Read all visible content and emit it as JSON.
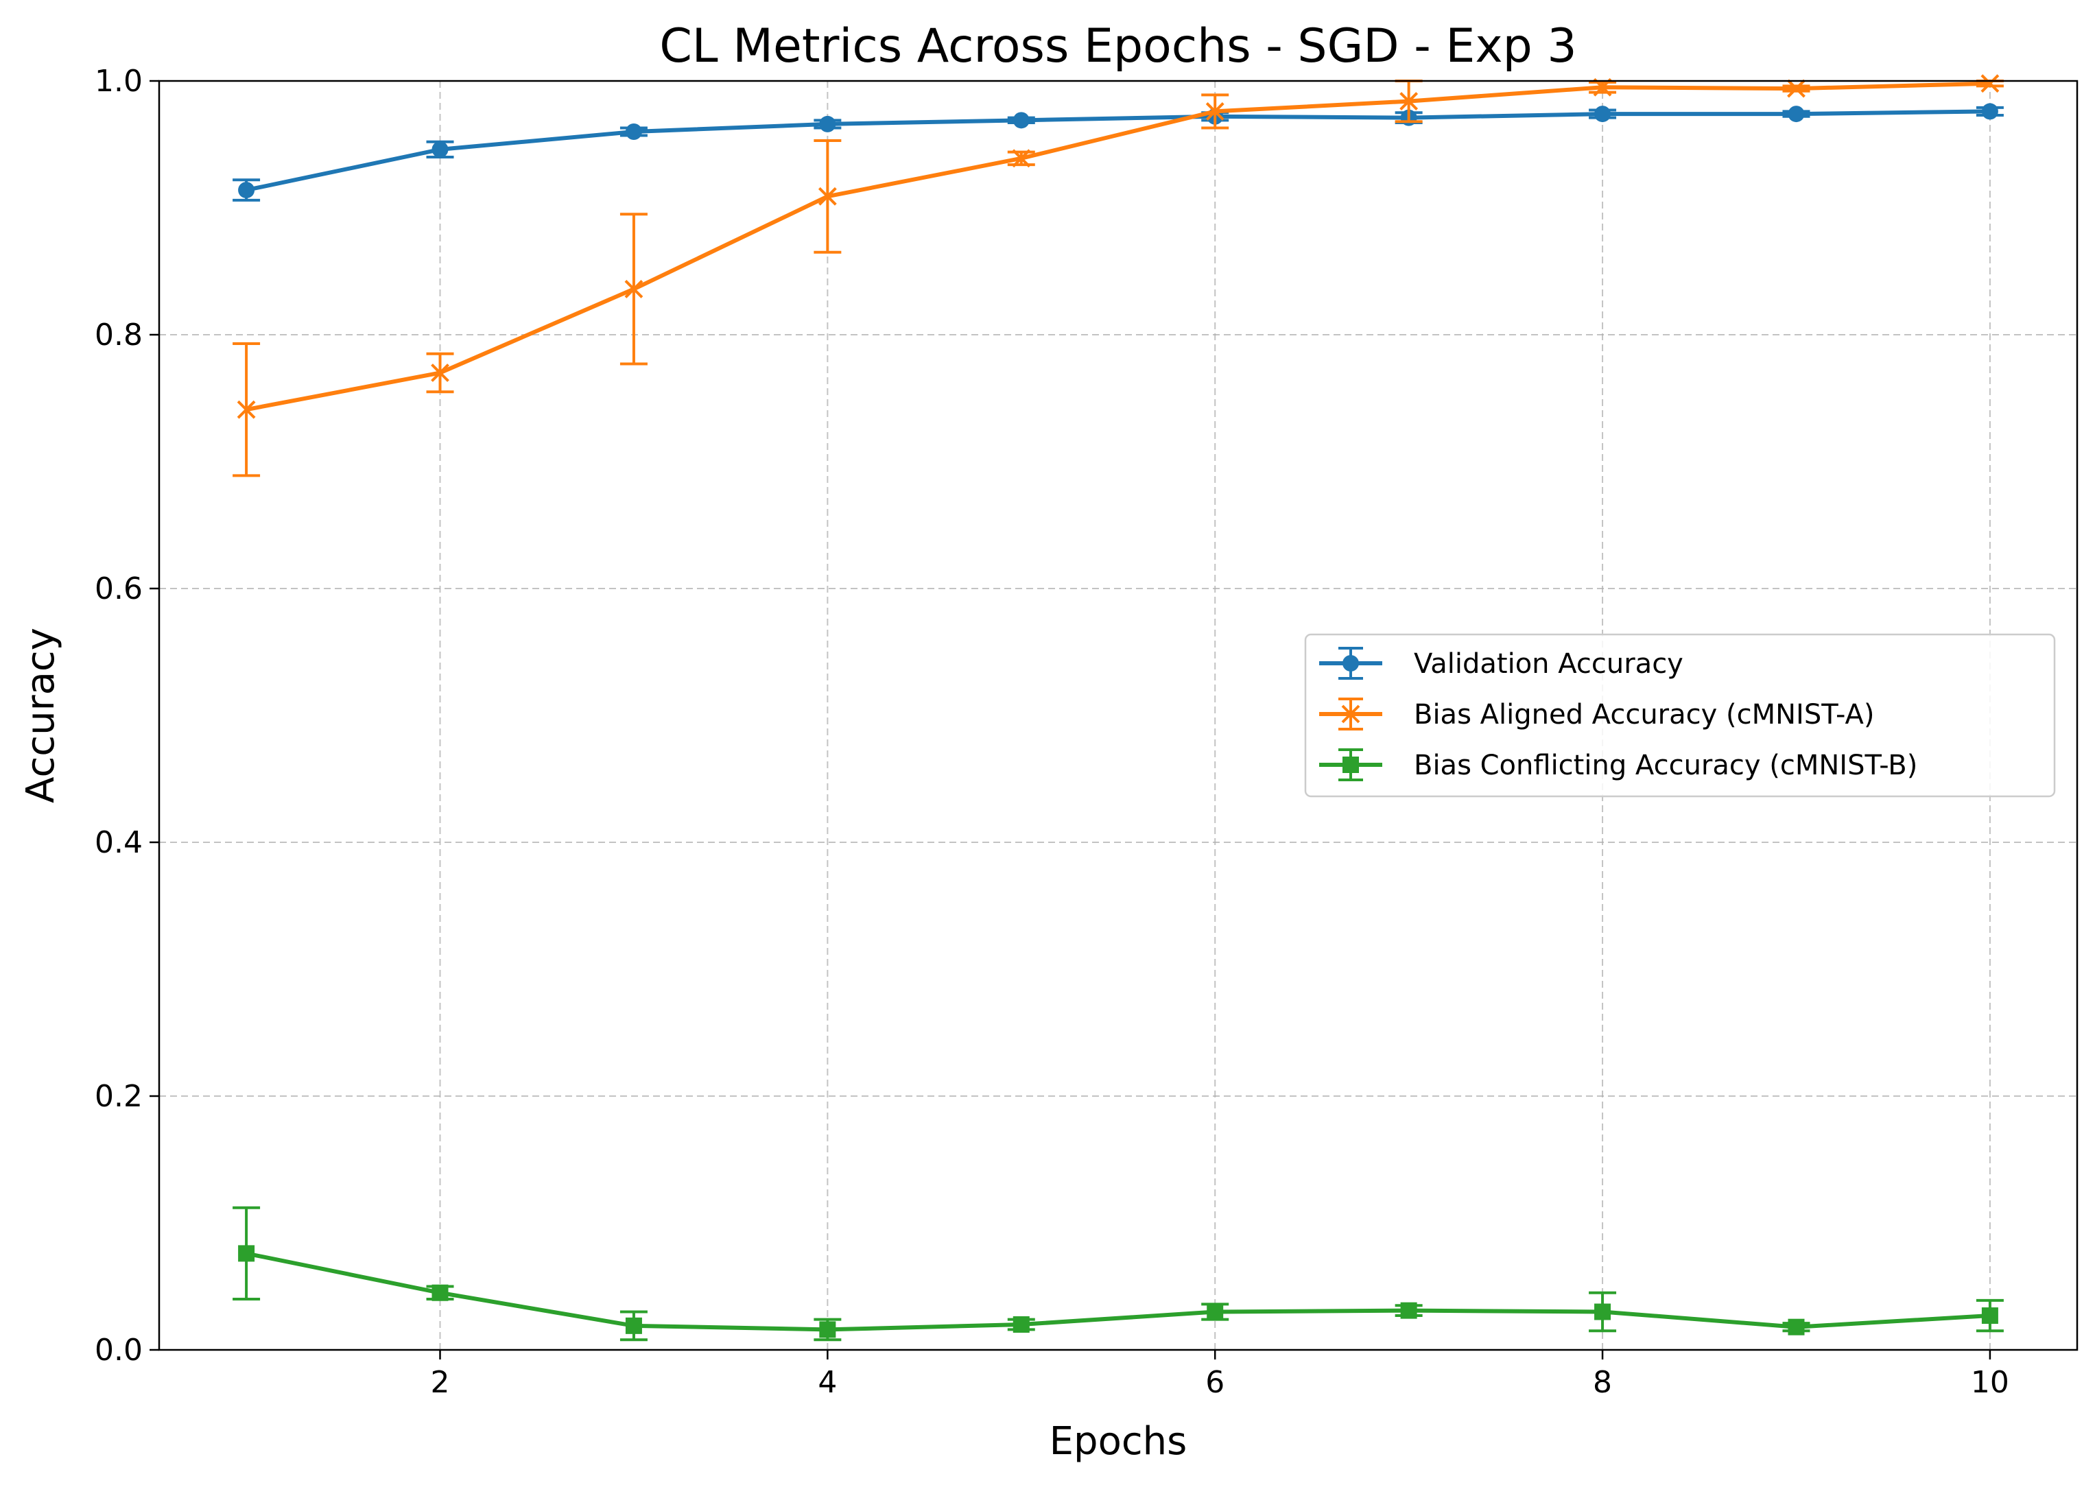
{
  "chart_data": {
    "type": "line",
    "title": "CL Metrics Across Epochs - SGD - Exp 3",
    "xlabel": "Epochs",
    "ylabel": "Accuracy",
    "xlim": [
      0.55,
      10.45
    ],
    "ylim": [
      0.0,
      1.0
    ],
    "xticks": [
      2,
      4,
      6,
      8,
      10
    ],
    "xtick_labels": [
      "2",
      "4",
      "6",
      "8",
      "10"
    ],
    "yticks": [
      0.0,
      0.2,
      0.4,
      0.6,
      0.8,
      1.0
    ],
    "ytick_labels": [
      "0.0",
      "0.2",
      "0.4",
      "0.6",
      "0.8",
      "1.0"
    ],
    "grid": true,
    "legend_position": "center-right",
    "x": [
      1,
      2,
      3,
      4,
      5,
      6,
      7,
      8,
      9,
      10
    ],
    "series": [
      {
        "name": "Validation Accuracy",
        "color": "#1f77b4",
        "marker": "circle",
        "values": [
          0.914,
          0.946,
          0.96,
          0.966,
          0.969,
          0.972,
          0.971,
          0.974,
          0.974,
          0.976
        ],
        "errors": [
          0.008,
          0.006,
          0.003,
          0.003,
          0.002,
          0.003,
          0.004,
          0.003,
          0.002,
          0.003
        ]
      },
      {
        "name": "Bias Aligned Accuracy (cMNIST-A)",
        "color": "#ff7f0e",
        "marker": "x",
        "values": [
          0.741,
          0.77,
          0.836,
          0.909,
          0.939,
          0.976,
          0.984,
          0.995,
          0.994,
          0.998
        ],
        "errors": [
          0.052,
          0.015,
          0.059,
          0.044,
          0.005,
          0.013,
          0.016,
          0.004,
          0.002,
          0.002
        ]
      },
      {
        "name": "Bias Conflicting Accuracy (cMNIST-B)",
        "color": "#2ca02c",
        "marker": "square",
        "values": [
          0.076,
          0.045,
          0.019,
          0.016,
          0.02,
          0.03,
          0.031,
          0.03,
          0.018,
          0.027
        ],
        "errors": [
          0.036,
          0.005,
          0.011,
          0.008,
          0.004,
          0.006,
          0.004,
          0.015,
          0.003,
          0.012
        ]
      }
    ]
  }
}
